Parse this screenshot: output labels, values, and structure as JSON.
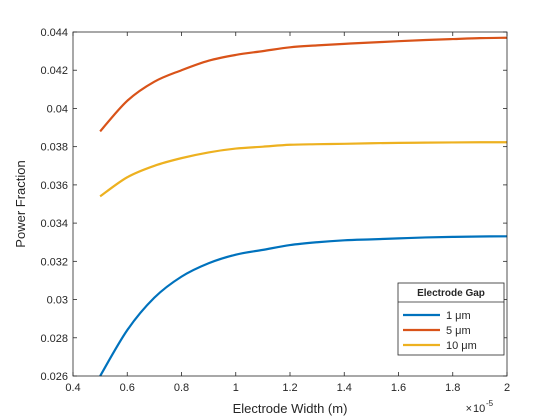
{
  "chart_data": {
    "type": "line",
    "title": "",
    "xlabel": "Electrode Width (m)",
    "ylabel": "Power Fraction",
    "x_exponent_label": "10",
    "x_exponent_prefix": "×",
    "x_exponent": "-5",
    "xlim": [
      0.4,
      2.0
    ],
    "ylim": [
      0.026,
      0.044
    ],
    "xticks": [
      0.4,
      0.6,
      0.8,
      1,
      1.2,
      1.4,
      1.6,
      1.8,
      2
    ],
    "xtick_labels": [
      "0.4",
      "0.6",
      "0.8",
      "1",
      "1.2",
      "1.4",
      "1.6",
      "1.8",
      "2"
    ],
    "yticks": [
      0.026,
      0.028,
      0.03,
      0.032,
      0.034,
      0.036,
      0.038,
      0.04,
      0.042,
      0.044
    ],
    "ytick_labels": [
      "0.026",
      "0.028",
      "0.03",
      "0.032",
      "0.034",
      "0.036",
      "0.038",
      "0.04",
      "0.042",
      "0.044"
    ],
    "grid": false,
    "legend": {
      "title": "Electrode Gap",
      "placement": "bottom-right",
      "entries": [
        "1 μm",
        "5 μm",
        "10 μm"
      ]
    },
    "series": [
      {
        "name": "1 μm",
        "color": "#0072BD",
        "x": [
          0.5,
          0.6,
          0.7,
          0.8,
          0.9,
          1.0,
          1.1,
          1.2,
          1.3,
          1.4,
          1.5,
          1.6,
          1.7,
          1.8,
          1.9,
          2.0
        ],
        "y": [
          0.026,
          0.0284,
          0.0301,
          0.0312,
          0.0319,
          0.03235,
          0.0326,
          0.03285,
          0.033,
          0.0331,
          0.03315,
          0.0332,
          0.03325,
          0.03328,
          0.0333,
          0.03331
        ]
      },
      {
        "name": "5 μm",
        "color": "#D95319",
        "x": [
          0.5,
          0.6,
          0.7,
          0.8,
          0.9,
          1.0,
          1.1,
          1.2,
          1.3,
          1.4,
          1.5,
          1.6,
          1.7,
          1.8,
          1.9,
          2.0
        ],
        "y": [
          0.0388,
          0.0404,
          0.0414,
          0.042,
          0.0425,
          0.0428,
          0.043,
          0.0432,
          0.0433,
          0.04338,
          0.04345,
          0.04352,
          0.04358,
          0.04363,
          0.04368,
          0.0437
        ]
      },
      {
        "name": "10 μm",
        "color": "#EDB120",
        "x": [
          0.5,
          0.6,
          0.7,
          0.8,
          0.9,
          1.0,
          1.1,
          1.2,
          1.3,
          1.4,
          1.5,
          1.6,
          1.7,
          1.8,
          1.9,
          2.0
        ],
        "y": [
          0.0354,
          0.0364,
          0.037,
          0.0374,
          0.0377,
          0.0379,
          0.038,
          0.0381,
          0.03813,
          0.03815,
          0.03818,
          0.0382,
          0.03821,
          0.03822,
          0.03823,
          0.03823
        ]
      }
    ]
  }
}
